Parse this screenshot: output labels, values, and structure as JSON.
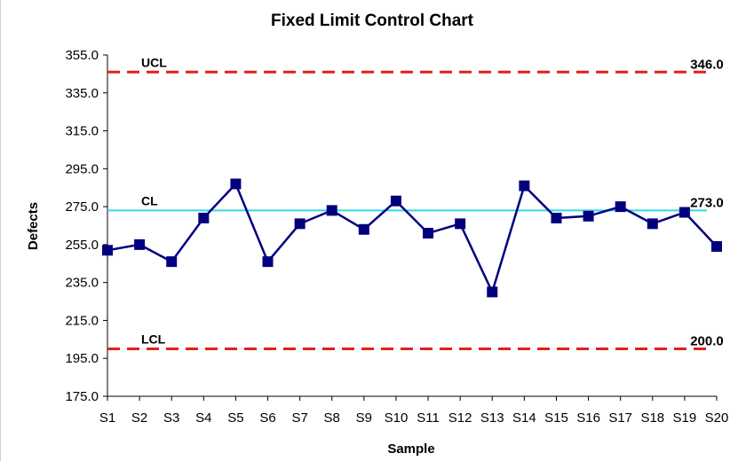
{
  "colors": {
    "series": "#00007f",
    "limit": "#e0201c",
    "center": "#33d6e8",
    "axis": "#000000"
  },
  "chart_data": {
    "type": "line",
    "title": "Fixed Limit Control Chart",
    "xlabel": "Sample",
    "ylabel": "Defects",
    "ylim": [
      175,
      355
    ],
    "yticks": [
      "175.0",
      "195.0",
      "215.0",
      "235.0",
      "255.0",
      "275.0",
      "295.0",
      "315.0",
      "335.0",
      "355.0"
    ],
    "categories": [
      "S1",
      "S2",
      "S3",
      "S4",
      "S5",
      "S6",
      "S7",
      "S8",
      "S9",
      "S10",
      "S11",
      "S12",
      "S13",
      "S14",
      "S15",
      "S16",
      "S17",
      "S18",
      "S19",
      "S20"
    ],
    "series": [
      {
        "values": [
          252,
          255,
          246,
          269,
          287,
          246,
          266,
          273,
          263,
          278,
          261,
          266,
          230,
          286,
          269,
          270,
          275,
          266,
          272,
          254
        ],
        "marker": "square"
      }
    ],
    "limits": [
      {
        "name": "UCL",
        "value": 346,
        "value_label": "346.0",
        "style": "dashed"
      },
      {
        "name": "CL",
        "value": 273,
        "value_label": "273.0",
        "style": "solid"
      },
      {
        "name": "LCL",
        "value": 200,
        "value_label": "200.0",
        "style": "dashed"
      }
    ],
    "grid": false,
    "legend": "none"
  }
}
